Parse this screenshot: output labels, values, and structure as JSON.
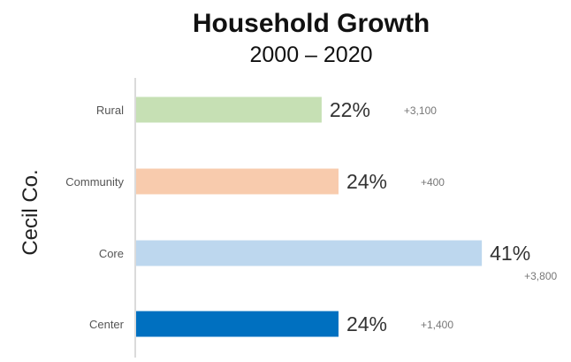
{
  "chart_data": {
    "type": "bar",
    "orientation": "horizontal",
    "title": "Household Growth",
    "subtitle": "2000 – 2020",
    "group_label": "Cecil Co.",
    "categories": [
      "Rural",
      "Community",
      "Core",
      "Center"
    ],
    "values": [
      22,
      24,
      41,
      24
    ],
    "value_labels": [
      "22%",
      "24%",
      "41%",
      "24%"
    ],
    "change_labels": [
      "+3,100",
      "+400",
      "+3,800",
      "+1,400"
    ],
    "colors": [
      "#c6e0b4",
      "#f8cbad",
      "#bdd7ee",
      "#0070c0"
    ],
    "xlim": [
      0,
      41
    ],
    "grid": false,
    "legend": "none"
  }
}
